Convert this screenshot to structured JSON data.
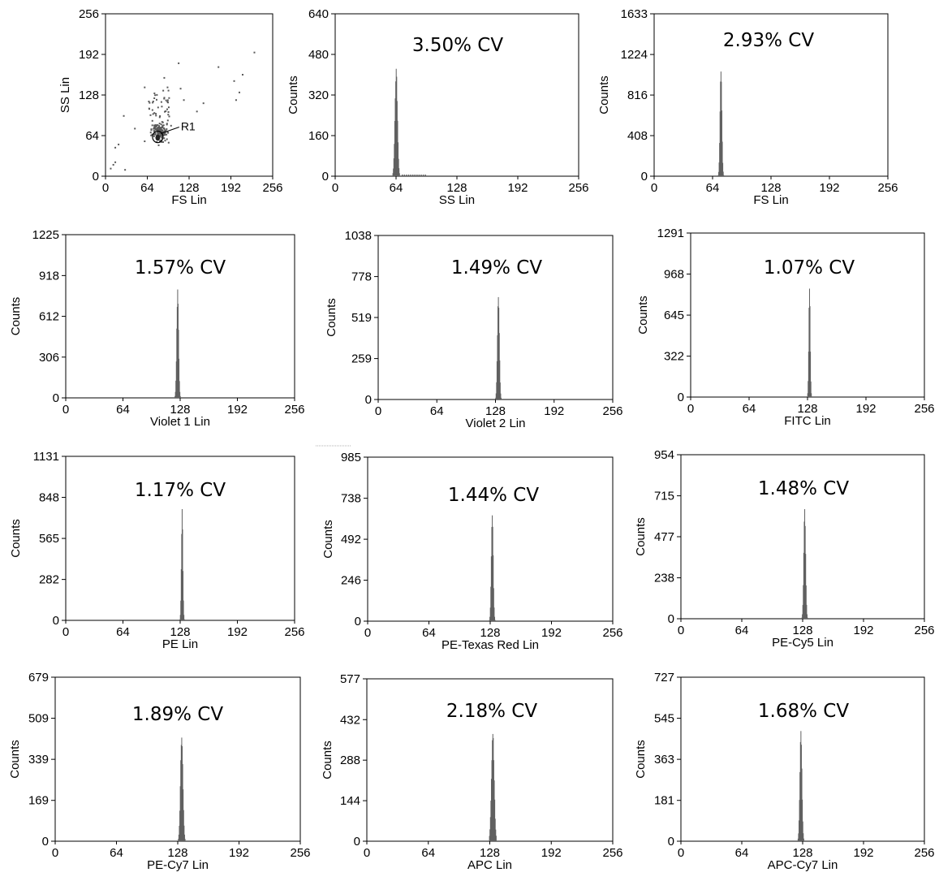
{
  "colors": {
    "bar": "#606060",
    "axis": "#000000",
    "dot": "#5a5a5a",
    "background": "#ffffff"
  },
  "chart_data": [
    {
      "name": "scatter-fs-ss",
      "type": "scatter",
      "xlabel": "FS Lin",
      "ylabel": "SS Lin",
      "xlim": [
        0,
        256
      ],
      "ylim": [
        0,
        256
      ],
      "xticks": [
        0,
        64,
        128,
        192,
        256
      ],
      "yticks": [
        0,
        64,
        128,
        192,
        256
      ],
      "gate": {
        "label": "R1",
        "center": [
          80,
          62
        ],
        "radius": [
          8,
          9
        ]
      },
      "cluster": {
        "center": [
          82,
          70
        ],
        "spread": [
          10,
          12
        ],
        "count": 170
      },
      "upper_cluster": {
        "x_range": [
          65,
          100
        ],
        "y_range": [
          85,
          135
        ],
        "count": 40
      },
      "scattered_points": [
        [
          228,
          195
        ],
        [
          210,
          160
        ],
        [
          200,
          120
        ],
        [
          205,
          132
        ],
        [
          197,
          150
        ],
        [
          150,
          115
        ],
        [
          120,
          120
        ],
        [
          115,
          138
        ],
        [
          112,
          178
        ],
        [
          90,
          155
        ],
        [
          95,
          140
        ],
        [
          60,
          140
        ],
        [
          20,
          50
        ],
        [
          15,
          45
        ],
        [
          30,
          10
        ],
        [
          12,
          18
        ],
        [
          15,
          22
        ],
        [
          8,
          12
        ],
        [
          60,
          55
        ],
        [
          45,
          75
        ],
        [
          28,
          95
        ],
        [
          140,
          102
        ],
        [
          173,
          172
        ]
      ]
    },
    {
      "name": "hist-ss",
      "type": "bar",
      "xlabel": "SS Lin",
      "ylabel": "Counts",
      "xlim": [
        0,
        256
      ],
      "ylim": [
        0,
        640
      ],
      "yticks": [
        0,
        160,
        320,
        480,
        640
      ],
      "annotation": "3.50% CV",
      "peak_x": 64,
      "peak_count": 425,
      "sigma": 2.4,
      "tail": true
    },
    {
      "name": "hist-fs",
      "type": "bar",
      "xlabel": "FS Lin",
      "ylabel": "Counts",
      "xlim": [
        0,
        256
      ],
      "ylim": [
        0,
        1633
      ],
      "yticks": [
        0,
        408,
        816,
        1224,
        1633
      ],
      "annotation": "2.93% CV",
      "peak_x": 73,
      "peak_count": 1110,
      "sigma": 1.8
    },
    {
      "name": "hist-violet1",
      "type": "bar",
      "xlabel": "Violet 1 Lin",
      "ylabel": "Counts",
      "xlim": [
        0,
        256
      ],
      "ylim": [
        0,
        1225
      ],
      "yticks": [
        0,
        306,
        612,
        918,
        1225
      ],
      "annotation": "1.57% CV",
      "peak_x": 125,
      "peak_count": 830,
      "sigma": 1.9
    },
    {
      "name": "hist-violet2",
      "type": "bar",
      "xlabel": "Violet 2 Lin",
      "ylabel": "Counts",
      "xlim": [
        0,
        256
      ],
      "ylim": [
        0,
        1038
      ],
      "yticks": [
        0,
        259,
        519,
        778,
        1038
      ],
      "annotation": "1.49% CV",
      "peak_x": 131,
      "peak_count": 695,
      "sigma": 1.9
    },
    {
      "name": "hist-fitc",
      "type": "bar",
      "xlabel": "FITC Lin",
      "ylabel": "Counts",
      "xlim": [
        0,
        256
      ],
      "ylim": [
        0,
        1291
      ],
      "yticks": [
        0,
        322,
        645,
        968,
        1291
      ],
      "annotation": "1.07% CV",
      "peak_x": 130,
      "peak_count": 885,
      "sigma": 1.4
    },
    {
      "name": "hist-pe",
      "type": "bar",
      "xlabel": "PE Lin",
      "ylabel": "Counts",
      "xlim": [
        0,
        256
      ],
      "ylim": [
        0,
        1131
      ],
      "yticks": [
        0,
        282,
        565,
        848,
        1131
      ],
      "annotation": "1.17% CV",
      "peak_x": 130,
      "peak_count": 770,
      "sigma": 1.5
    },
    {
      "name": "hist-pe-texas-red",
      "type": "bar",
      "xlabel": "PE-Texas Red Lin",
      "ylabel": "Counts",
      "xlim": [
        0,
        256
      ],
      "ylim": [
        0,
        985
      ],
      "yticks": [
        0,
        246,
        492,
        738,
        985
      ],
      "annotation": "1.44% CV",
      "peak_x": 130,
      "peak_count": 670,
      "sigma": 1.8
    },
    {
      "name": "hist-pe-cy5",
      "type": "bar",
      "xlabel": "PE-Cy5 Lin",
      "ylabel": "Counts",
      "xlim": [
        0,
        256
      ],
      "ylim": [
        0,
        954
      ],
      "yticks": [
        0,
        238,
        477,
        715,
        954
      ],
      "annotation": "1.48% CV",
      "peak_x": 130,
      "peak_count": 650,
      "sigma": 1.8
    },
    {
      "name": "hist-pe-cy7",
      "type": "bar",
      "xlabel": "PE-Cy7 Lin",
      "ylabel": "Counts",
      "xlim": [
        0,
        256
      ],
      "ylim": [
        0,
        679
      ],
      "yticks": [
        0,
        169,
        339,
        509,
        679
      ],
      "annotation": "1.89% CV",
      "peak_x": 132,
      "peak_count": 460,
      "sigma": 2.3
    },
    {
      "name": "hist-apc",
      "type": "bar",
      "xlabel": "APC Lin",
      "ylabel": "Counts",
      "xlim": [
        0,
        256
      ],
      "ylim": [
        0,
        577
      ],
      "yticks": [
        0,
        144,
        288,
        432,
        577
      ],
      "annotation": "2.18% CV",
      "peak_x": 131,
      "peak_count": 395,
      "sigma": 2.6
    },
    {
      "name": "hist-apc-cy7",
      "type": "bar",
      "xlabel": "APC-Cy7 Lin",
      "ylabel": "Counts",
      "xlim": [
        0,
        256
      ],
      "ylim": [
        0,
        727
      ],
      "yticks": [
        0,
        181,
        363,
        545,
        727
      ],
      "annotation": "1.68% CV",
      "peak_x": 126,
      "peak_count": 490,
      "sigma": 2.0
    }
  ]
}
